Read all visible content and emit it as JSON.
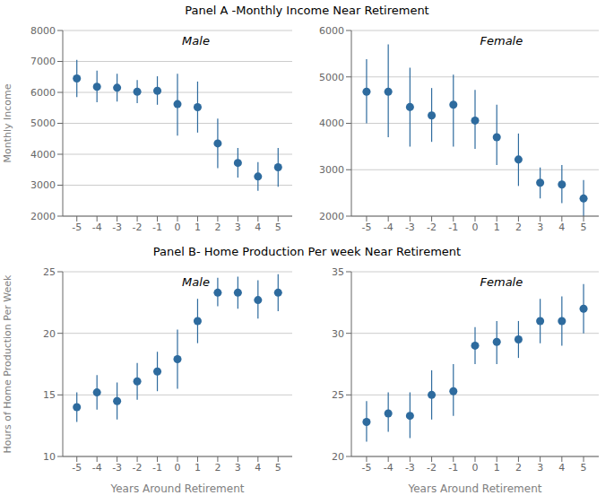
{
  "chart_data": [
    {
      "type": "scatter",
      "title": "Panel A -Monthly  Income  Near Retirement",
      "ylabel": "Monthly Income",
      "annotations": [
        "Male"
      ],
      "x": [
        -5,
        -4,
        -3,
        -2,
        -1,
        0,
        1,
        2,
        3,
        4,
        5
      ],
      "values": [
        6450,
        6180,
        6150,
        6020,
        6050,
        5620,
        5520,
        4350,
        3720,
        3280,
        3580
      ],
      "lo": [
        5850,
        5680,
        5700,
        5650,
        5600,
        4600,
        4700,
        3550,
        3250,
        2820,
        2950
      ],
      "hi": [
        7050,
        6700,
        6600,
        6400,
        6520,
        6600,
        6350,
        5150,
        4200,
        3750,
        4200
      ],
      "color": "#2e6b9e",
      "marker": "circle",
      "grid": true,
      "xlim": [
        -5.7,
        5.7
      ],
      "xticks": [
        -5,
        -4,
        -3,
        -2,
        -1,
        0,
        1,
        2,
        3,
        4,
        5
      ],
      "ylim": [
        2000,
        8000
      ],
      "yticks": [
        2000,
        3000,
        4000,
        5000,
        6000,
        7000,
        8000
      ]
    },
    {
      "type": "scatter",
      "annotations": [
        "Female"
      ],
      "x": [
        -5,
        -4,
        -3,
        -2,
        -1,
        0,
        1,
        2,
        3,
        4,
        5
      ],
      "values": [
        4680,
        4680,
        4350,
        4170,
        4400,
        4060,
        3700,
        3220,
        2720,
        2680,
        2380
      ],
      "lo": [
        4000,
        3700,
        3500,
        3600,
        3500,
        3450,
        3100,
        2650,
        2380,
        2280,
        2000
      ],
      "hi": [
        5380,
        5700,
        5200,
        4760,
        5050,
        4720,
        4400,
        3780,
        3050,
        3100,
        2780
      ],
      "color": "#2e6b9e",
      "marker": "circle",
      "grid": true,
      "xlim": [
        -5.7,
        5.7
      ],
      "xticks": [
        -5,
        -4,
        -3,
        -2,
        -1,
        0,
        1,
        2,
        3,
        4,
        5
      ],
      "ylim": [
        2000,
        6000
      ],
      "yticks": [
        2000,
        3000,
        4000,
        5000,
        6000
      ]
    },
    {
      "type": "scatter",
      "title": "Panel B- Home Production  Per week  Near Retirement",
      "ylabel": "Hours of Home Production Per Week",
      "xlabel": "Years Around Retirement",
      "annotations": [
        "Male"
      ],
      "x": [
        -5,
        -4,
        -3,
        -2,
        -1,
        0,
        1,
        2,
        3,
        4,
        5
      ],
      "values": [
        14.0,
        15.2,
        14.5,
        16.1,
        16.9,
        17.9,
        21.0,
        23.3,
        23.3,
        22.7,
        23.3
      ],
      "lo": [
        12.8,
        13.8,
        13.0,
        14.6,
        15.3,
        15.5,
        19.2,
        22.2,
        22.0,
        21.2,
        21.8
      ],
      "hi": [
        15.2,
        16.6,
        16.0,
        17.6,
        18.5,
        20.3,
        22.8,
        24.5,
        24.6,
        24.3,
        24.8
      ],
      "color": "#2e6b9e",
      "marker": "circle",
      "grid": true,
      "xlim": [
        -5.7,
        5.7
      ],
      "xticks": [
        -5,
        -4,
        -3,
        -2,
        -1,
        0,
        1,
        2,
        3,
        4,
        5
      ],
      "ylim": [
        10,
        25
      ],
      "yticks": [
        10,
        15,
        20,
        25
      ]
    },
    {
      "type": "scatter",
      "xlabel": "Years Around Retirement",
      "annotations": [
        "Female"
      ],
      "x": [
        -5,
        -4,
        -3,
        -2,
        -1,
        0,
        1,
        2,
        3,
        4,
        5
      ],
      "values": [
        22.8,
        23.5,
        23.3,
        25.0,
        25.3,
        29.0,
        29.3,
        29.5,
        31.0,
        31.0,
        32.0
      ],
      "lo": [
        21.2,
        22.0,
        21.5,
        23.0,
        23.3,
        27.5,
        27.5,
        28.0,
        29.2,
        29.0,
        30.0
      ],
      "hi": [
        24.5,
        25.2,
        25.2,
        27.0,
        27.5,
        30.5,
        31.0,
        31.0,
        32.8,
        33.0,
        34.0
      ],
      "color": "#2e6b9e",
      "marker": "circle",
      "grid": true,
      "xlim": [
        -5.7,
        5.7
      ],
      "xticks": [
        -5,
        -4,
        -3,
        -2,
        -1,
        0,
        1,
        2,
        3,
        4,
        5
      ],
      "ylim": [
        20,
        35
      ],
      "yticks": [
        20,
        25,
        30,
        35
      ]
    }
  ]
}
